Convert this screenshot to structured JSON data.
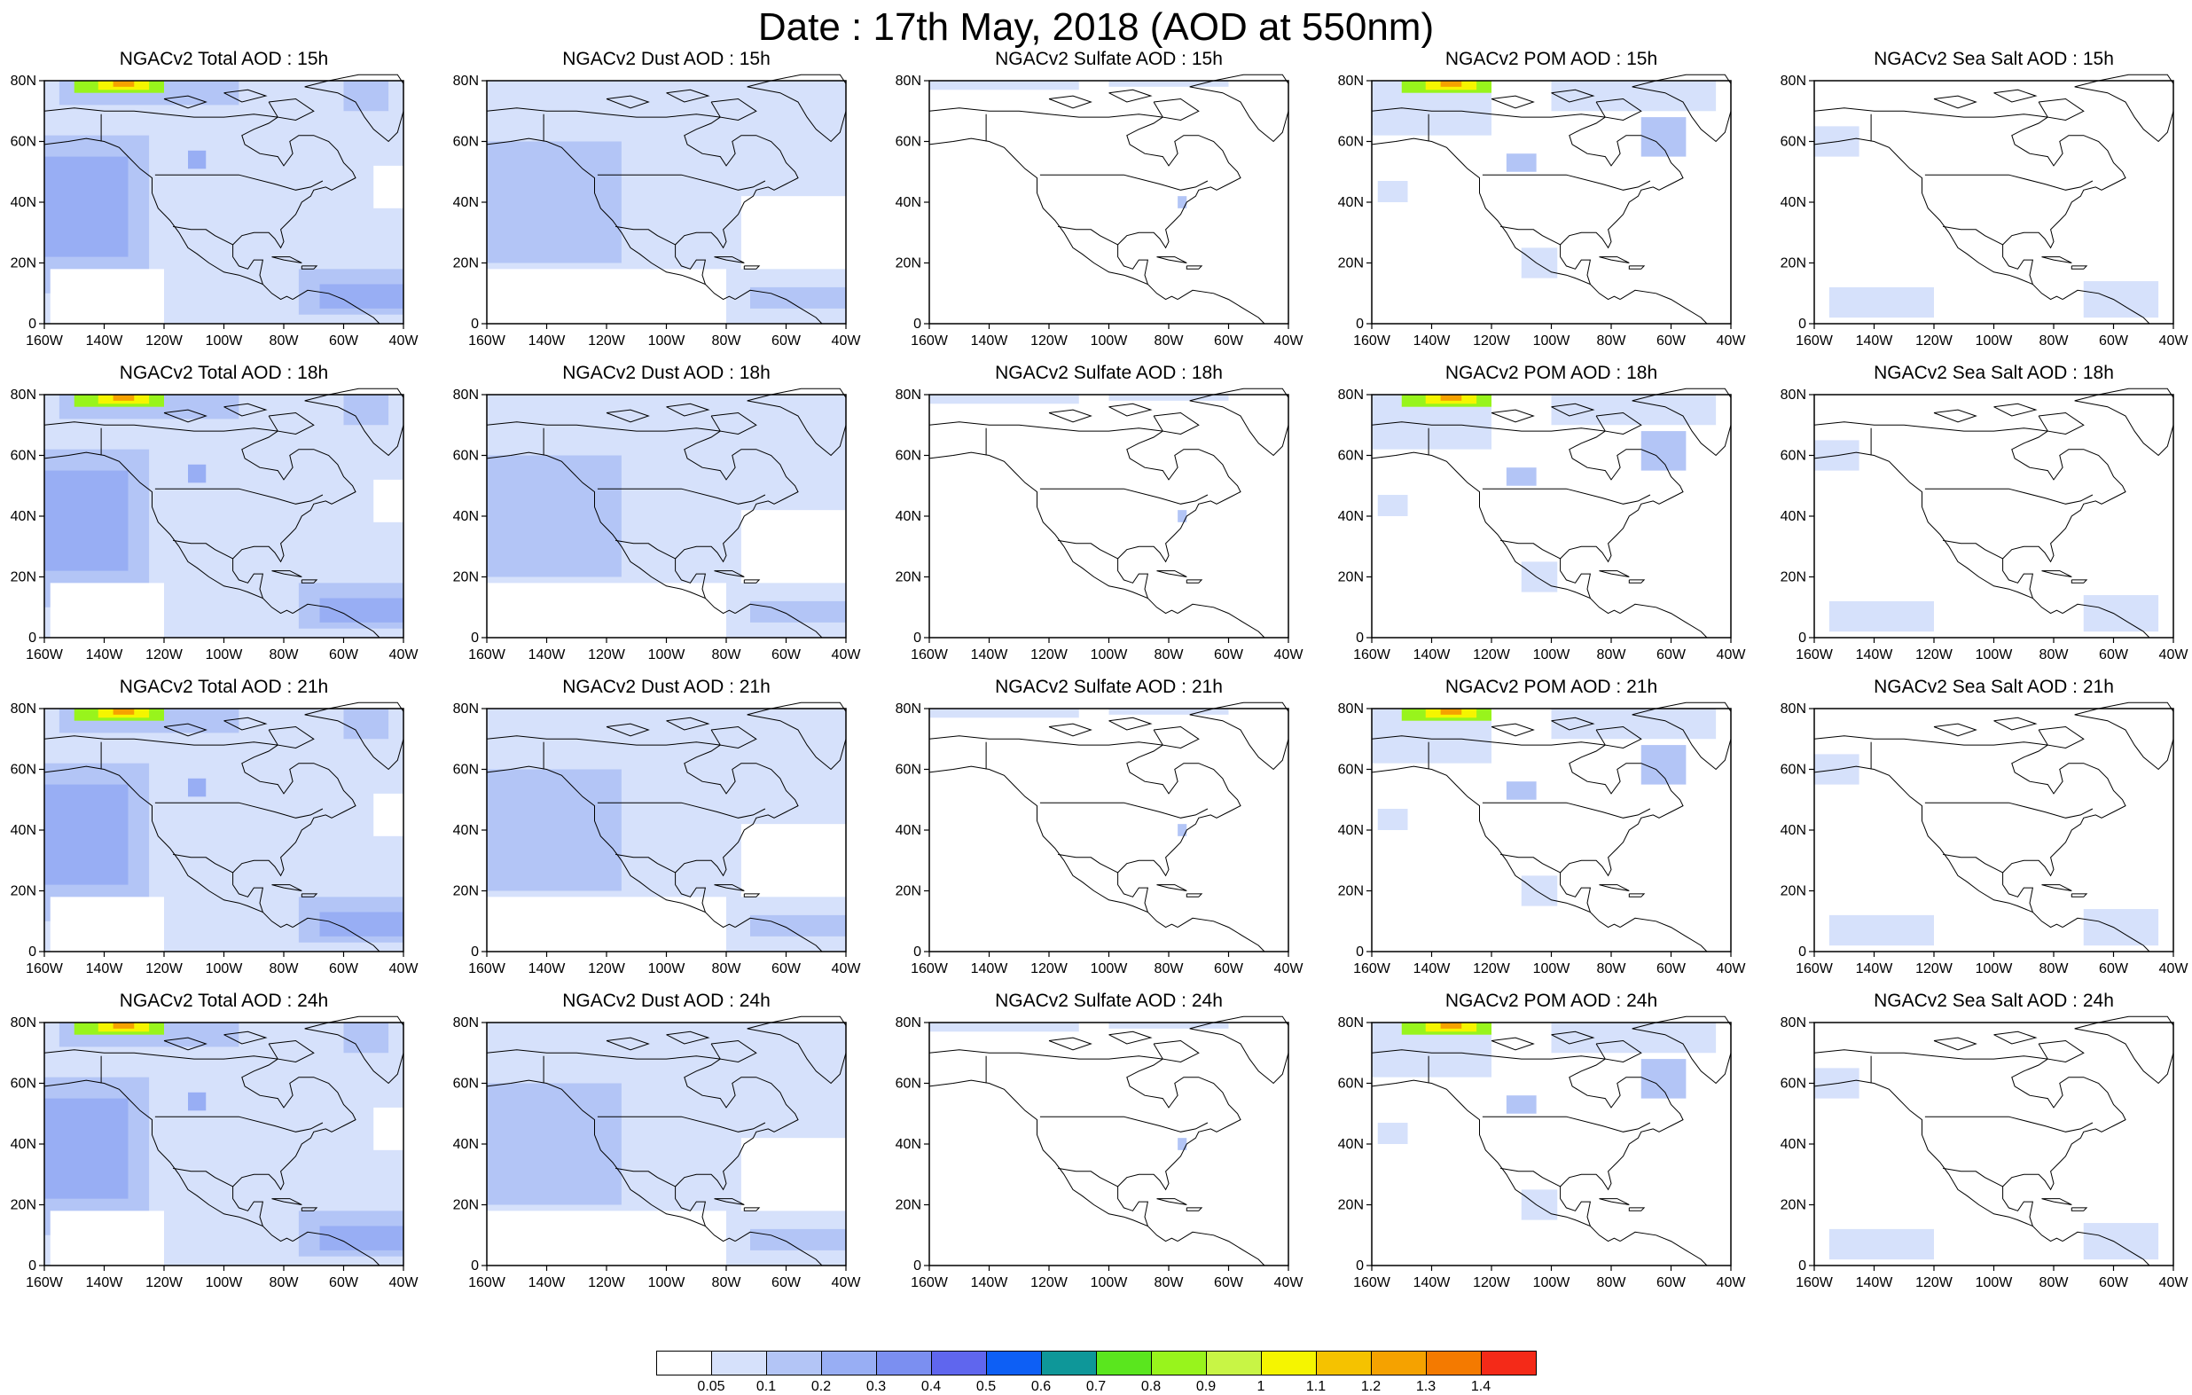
{
  "title": "Date : 17th May, 2018 (AOD at 550nm)",
  "map": {
    "lat_ticks": [
      "80N",
      "60N",
      "40N",
      "20N",
      "0"
    ],
    "lon_ticks": [
      "160W",
      "140W",
      "120W",
      "100W",
      "80W",
      "60W",
      "40W"
    ]
  },
  "rows": [
    {
      "hour": "15h",
      "panels": [
        {
          "title": "NGACv2 Total AOD : 15h",
          "field": "total"
        },
        {
          "title": "NGACv2 Dust AOD : 15h",
          "field": "dust"
        },
        {
          "title": "NGACv2 Sulfate AOD : 15h",
          "field": "sulfate"
        },
        {
          "title": "NGACv2 POM AOD : 15h",
          "field": "pom"
        },
        {
          "title": "NGACv2 Sea Salt AOD : 15h",
          "field": "seasalt"
        }
      ]
    },
    {
      "hour": "18h",
      "panels": [
        {
          "title": "NGACv2 Total AOD : 18h",
          "field": "total"
        },
        {
          "title": "NGACv2 Dust AOD : 18h",
          "field": "dust"
        },
        {
          "title": "NGACv2 Sulfate AOD : 18h",
          "field": "sulfate"
        },
        {
          "title": "NGACv2 POM AOD : 18h",
          "field": "pom"
        },
        {
          "title": "NGACv2 Sea Salt AOD : 18h",
          "field": "seasalt"
        }
      ]
    },
    {
      "hour": "21h",
      "panels": [
        {
          "title": "NGACv2 Total AOD : 21h",
          "field": "total"
        },
        {
          "title": "NGACv2 Dust AOD : 21h",
          "field": "dust"
        },
        {
          "title": "NGACv2 Sulfate AOD : 21h",
          "field": "sulfate"
        },
        {
          "title": "NGACv2 POM AOD : 21h",
          "field": "pom"
        },
        {
          "title": "NGACv2 Sea Salt AOD : 21h",
          "field": "seasalt"
        }
      ]
    },
    {
      "hour": "24h",
      "panels": [
        {
          "title": "NGACv2 Total AOD : 24h",
          "field": "total"
        },
        {
          "title": "NGACv2 Dust AOD : 24h",
          "field": "dust"
        },
        {
          "title": "NGACv2 Sulfate AOD : 24h",
          "field": "sulfate"
        },
        {
          "title": "NGACv2 POM AOD : 24h",
          "field": "pom"
        },
        {
          "title": "NGACv2 Sea Salt  AOD : 24h",
          "field": "seasalt"
        }
      ]
    }
  ],
  "colorbar": {
    "colors": [
      "#ffffff",
      "#d6e1fb",
      "#b3c5f6",
      "#98aef4",
      "#7b8ff1",
      "#5f66ee",
      "#0d5ff5",
      "#0e9799",
      "#5ae61e",
      "#98f41c",
      "#c8f545",
      "#f5f500",
      "#f5c200",
      "#f5a200",
      "#f47a00",
      "#f42a18"
    ],
    "labels": [
      "0.05",
      "0.1",
      "0.2",
      "0.3",
      "0.4",
      "0.5",
      "0.6",
      "0.7",
      "0.8",
      "0.9",
      "1",
      "1.1",
      "1.2",
      "1.3",
      "1.4"
    ]
  },
  "fields": {
    "total": [
      {
        "level": 1,
        "lon": [
          -163,
          -38
        ],
        "lat": [
          -2,
          82
        ]
      },
      {
        "level": 2,
        "lon": [
          -163,
          -125
        ],
        "lat": [
          10,
          62
        ]
      },
      {
        "level": 3,
        "lon": [
          -160,
          -132
        ],
        "lat": [
          22,
          55
        ]
      },
      {
        "level": 2,
        "lon": [
          -75,
          -38
        ],
        "lat": [
          3,
          18
        ]
      },
      {
        "level": 3,
        "lon": [
          -68,
          -40
        ],
        "lat": [
          5,
          13
        ]
      },
      {
        "level": 2,
        "lon": [
          -155,
          -95
        ],
        "lat": [
          72,
          80
        ]
      },
      {
        "level": 3,
        "lon": [
          -112,
          -106
        ],
        "lat": [
          51,
          57
        ]
      },
      {
        "level": 2,
        "lon": [
          -60,
          -45
        ],
        "lat": [
          70,
          80
        ]
      },
      {
        "level": 0,
        "lon": [
          -158,
          -120
        ],
        "lat": [
          -2,
          18
        ]
      },
      {
        "level": 0,
        "lon": [
          -50,
          -40
        ],
        "lat": [
          38,
          52
        ]
      },
      {
        "level": 9,
        "lon": [
          -150,
          -120
        ],
        "lat": [
          76,
          82
        ]
      },
      {
        "level": 11,
        "lon": [
          -142,
          -125
        ],
        "lat": [
          77,
          81
        ]
      },
      {
        "level": 13,
        "lon": [
          -137,
          -130
        ],
        "lat": [
          78,
          80
        ]
      }
    ],
    "dust": [
      {
        "level": 1,
        "lon": [
          -160,
          -40
        ],
        "lat": [
          -2,
          82
        ]
      },
      {
        "level": 2,
        "lon": [
          -160,
          -115
        ],
        "lat": [
          20,
          60
        ]
      },
      {
        "level": 0,
        "lon": [
          -160,
          -80
        ],
        "lat": [
          -2,
          18
        ]
      },
      {
        "level": 0,
        "lon": [
          -75,
          -40
        ],
        "lat": [
          18,
          42
        ]
      },
      {
        "level": 2,
        "lon": [
          -72,
          -40
        ],
        "lat": [
          5,
          12
        ]
      }
    ],
    "sulfate": [
      {
        "level": 1,
        "lon": [
          -160,
          -110
        ],
        "lat": [
          77,
          82
        ]
      },
      {
        "level": 1,
        "lon": [
          -100,
          -60
        ],
        "lat": [
          78,
          82
        ]
      },
      {
        "level": 2,
        "lon": [
          -77,
          -74
        ],
        "lat": [
          38,
          42
        ]
      }
    ],
    "pom": [
      {
        "level": 1,
        "lon": [
          -160,
          -120
        ],
        "lat": [
          62,
          82
        ]
      },
      {
        "level": 1,
        "lon": [
          -100,
          -45
        ],
        "lat": [
          70,
          82
        ]
      },
      {
        "level": 2,
        "lon": [
          -70,
          -55
        ],
        "lat": [
          55,
          68
        ]
      },
      {
        "level": 1,
        "lon": [
          -158,
          -148
        ],
        "lat": [
          40,
          47
        ]
      },
      {
        "level": 2,
        "lon": [
          -115,
          -105
        ],
        "lat": [
          50,
          56
        ]
      },
      {
        "level": 1,
        "lon": [
          -110,
          -98
        ],
        "lat": [
          15,
          25
        ]
      },
      {
        "level": 9,
        "lon": [
          -150,
          -120
        ],
        "lat": [
          76,
          82
        ]
      },
      {
        "level": 11,
        "lon": [
          -142,
          -125
        ],
        "lat": [
          77,
          81
        ]
      },
      {
        "level": 13,
        "lon": [
          -137,
          -130
        ],
        "lat": [
          78,
          80
        ]
      }
    ],
    "seasalt": [
      {
        "level": 1,
        "lon": [
          -160,
          -145
        ],
        "lat": [
          55,
          65
        ]
      },
      {
        "level": 1,
        "lon": [
          -155,
          -120
        ],
        "lat": [
          2,
          12
        ]
      },
      {
        "level": 1,
        "lon": [
          -70,
          -45
        ],
        "lat": [
          2,
          14
        ]
      }
    ]
  }
}
